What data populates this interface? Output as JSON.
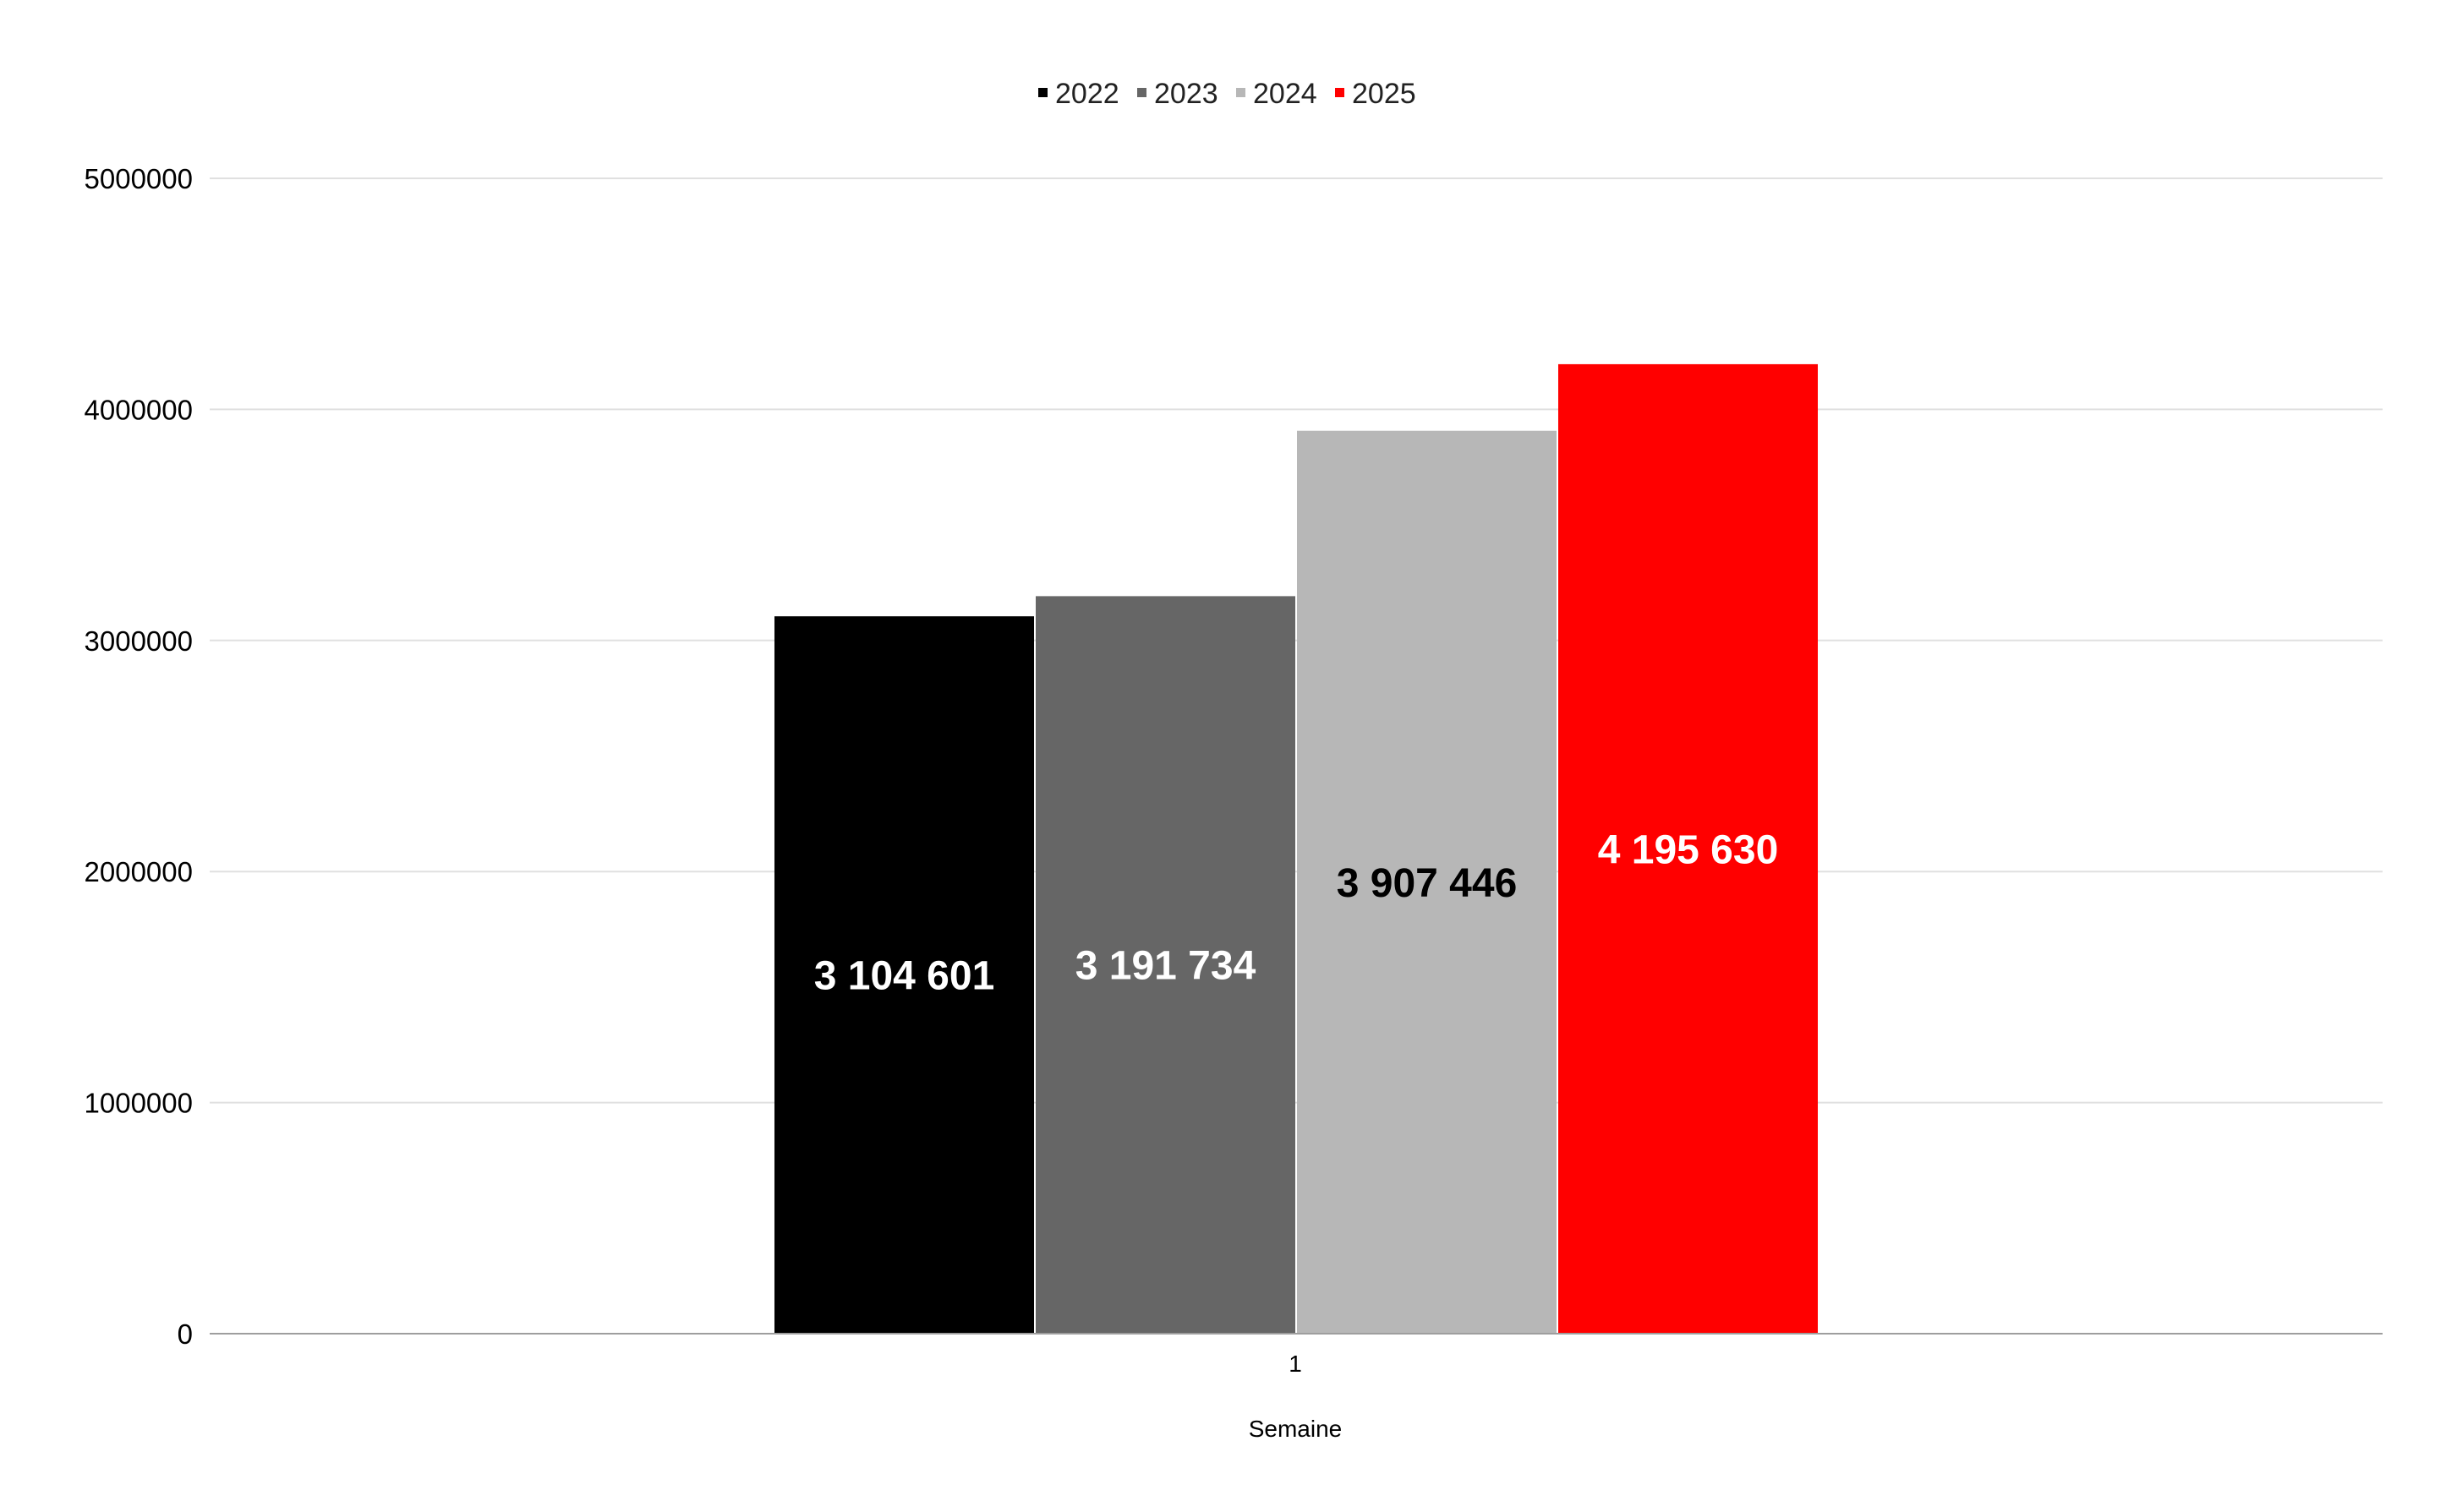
{
  "chart_data": {
    "type": "bar",
    "title": "",
    "xlabel": "Semaine",
    "ylabel": "",
    "categories": [
      "1"
    ],
    "series": [
      {
        "name": "2022",
        "values": [
          3104601
        ],
        "label": "3 104 601",
        "color": "#000000",
        "label_color": "#ffffff"
      },
      {
        "name": "2023",
        "values": [
          3191734
        ],
        "label": "3 191 734",
        "color": "#666666",
        "label_color": "#ffffff"
      },
      {
        "name": "2024",
        "values": [
          3907446
        ],
        "label": "3 907 446",
        "color": "#b7b7b7",
        "label_color": "#000000"
      },
      {
        "name": "2025",
        "values": [
          4195630
        ],
        "label": "4 195 630",
        "color": "#ff0000",
        "label_color": "#ffffff"
      }
    ],
    "ylim": [
      0,
      5000000
    ],
    "yticks": [
      "0",
      "1000000",
      "2000000",
      "3000000",
      "4000000",
      "5000000"
    ],
    "grid": true,
    "legend_position": "top"
  }
}
